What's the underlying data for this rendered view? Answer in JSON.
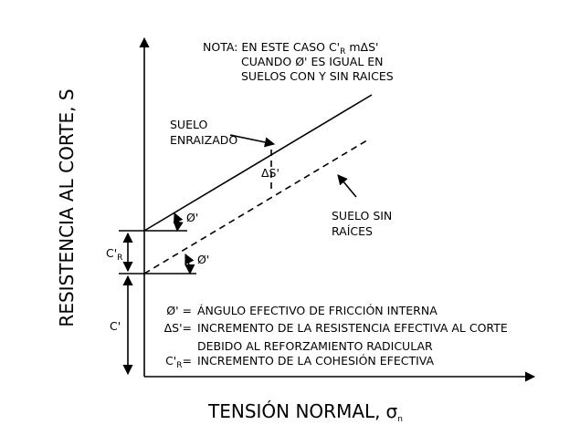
{
  "axes": {
    "y_label": "RESISTENCIA AL CORTE, S",
    "x_label": "TENSIÓN NORMAL,",
    "x_symbol": "σ",
    "x_symbol_sub": "n"
  },
  "note": {
    "line1_a": "NOTA: EN ESTE CASO C'",
    "line1_sub": "R",
    "line1_b": " mΔS'",
    "line2": "CUANDO Ø' ES IGUAL EN",
    "line3": "SUELOS CON Y SIN RAICES"
  },
  "labels": {
    "rooted_1": "SUELO",
    "rooted_2": "ENRAIZADO",
    "delta_s": "ΔS'",
    "unrooted_1": "SUELO SIN",
    "unrooted_2": "RAÍCES",
    "angle_1": "Ø'",
    "angle_2": "Ø'",
    "cr": "C'",
    "cr_sub": "R",
    "c": "C'"
  },
  "legend": [
    {
      "symbol": "Ø' =",
      "text": "ÁNGULO EFECTIVO DE FRICCIÓN INTERNA"
    },
    {
      "symbol": "ΔS'=",
      "text": "INCREMENTO DE LA RESISTENCIA EFECTIVA AL CORTE"
    },
    {
      "text": "DEBIDO AL REFORZAMIENTO RADICULAR"
    },
    {
      "symbol": "C'",
      "symbol_sub": "R",
      "symbol_tail": "=",
      "text": "INCREMENTO DE LA COHESIÓN EFECTIVA"
    }
  ]
}
